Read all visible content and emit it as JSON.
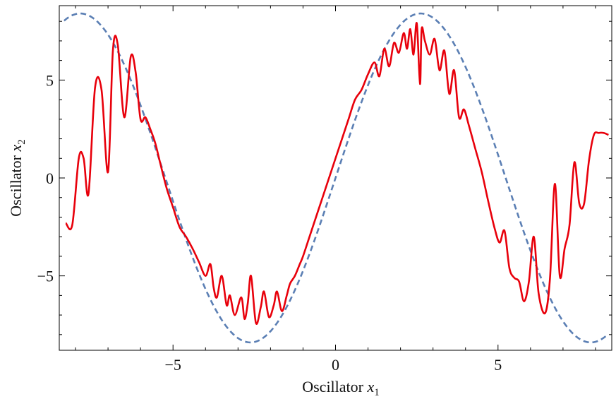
{
  "chart_data": {
    "type": "line",
    "title": "",
    "xlabel_main": "Oscillator ",
    "xlabel_var": "x",
    "xlabel_sub": "1",
    "ylabel_main": "Oscillator ",
    "ylabel_var": "x",
    "ylabel_sub": "2",
    "xlim": [
      -8.5,
      8.5
    ],
    "ylim": [
      -8.8,
      8.8
    ],
    "grid": false,
    "x_ticks_major": [
      -5,
      0,
      5
    ],
    "y_ticks_major": [
      -5,
      0,
      5
    ],
    "x_tick_labels": [
      "−5",
      "0",
      "5"
    ],
    "y_tick_labels": [
      "−5",
      "0",
      "5"
    ],
    "series": [
      {
        "style": "solid",
        "color": "#e8000b",
        "x": [
          -8.3,
          -8.1,
          -7.9,
          -7.75,
          -7.6,
          -7.4,
          -7.2,
          -7.0,
          -6.85,
          -6.7,
          -6.5,
          -6.3,
          -6.15,
          -6.0,
          -5.85,
          -5.7,
          -5.55,
          -5.4,
          -5.2,
          -5.0,
          -4.8,
          -4.6,
          -4.4,
          -4.2,
          -4.0,
          -3.85,
          -3.75,
          -3.65,
          -3.5,
          -3.35,
          -3.25,
          -3.1,
          -2.9,
          -2.8,
          -2.7,
          -2.6,
          -2.45,
          -2.3,
          -2.2,
          -2.05,
          -1.9,
          -1.8,
          -1.65,
          -1.5,
          -1.4,
          -1.25,
          -1.1,
          -1.0,
          -0.8,
          -0.6,
          -0.4,
          -0.2,
          0.0,
          0.2,
          0.4,
          0.6,
          0.8,
          1.0,
          1.2,
          1.35,
          1.5,
          1.65,
          1.8,
          1.95,
          2.1,
          2.2,
          2.3,
          2.4,
          2.5,
          2.6,
          2.65,
          2.75,
          2.9,
          3.05,
          3.2,
          3.35,
          3.5,
          3.65,
          3.8,
          3.95,
          4.1,
          4.3,
          4.5,
          4.7,
          4.9,
          5.05,
          5.2,
          5.35,
          5.5,
          5.65,
          5.8,
          5.95,
          6.1,
          6.25,
          6.45,
          6.6,
          6.75,
          6.9,
          7.05,
          7.2,
          7.35,
          7.5,
          7.65,
          7.8,
          7.95,
          8.1,
          8.25,
          8.4
        ],
        "values": [
          -2.3,
          -2.4,
          1.0,
          1.0,
          -0.8,
          4.6,
          4.5,
          0.3,
          6.5,
          6.8,
          3.1,
          6.2,
          5.4,
          3.0,
          3.1,
          2.5,
          1.8,
          0.8,
          -0.5,
          -1.5,
          -2.5,
          -3.0,
          -3.6,
          -4.3,
          -5.0,
          -4.4,
          -5.6,
          -6.1,
          -5.0,
          -6.5,
          -6.0,
          -7.0,
          -6.1,
          -7.2,
          -6.4,
          -5.0,
          -7.4,
          -6.6,
          -5.8,
          -7.1,
          -6.5,
          -5.8,
          -6.8,
          -6.0,
          -5.4,
          -5.0,
          -4.4,
          -4.0,
          -3.0,
          -2.0,
          -1.0,
          0.0,
          1.0,
          2.0,
          3.0,
          4.0,
          4.5,
          5.3,
          5.9,
          5.2,
          6.6,
          5.7,
          6.9,
          6.4,
          7.4,
          6.6,
          7.6,
          6.3,
          7.9,
          4.8,
          7.6,
          7.0,
          6.3,
          7.1,
          5.5,
          6.5,
          4.3,
          5.5,
          3.1,
          3.5,
          2.7,
          1.5,
          0.3,
          -1.2,
          -2.6,
          -3.3,
          -2.7,
          -4.6,
          -5.1,
          -5.3,
          -6.3,
          -5.3,
          -3.0,
          -5.9,
          -6.9,
          -5.1,
          -0.3,
          -5.0,
          -3.6,
          -2.4,
          0.8,
          -1.3,
          -1.3,
          0.9,
          2.2,
          2.3,
          2.3,
          2.2
        ]
      },
      {
        "style": "dashed",
        "color": "#5b7fb4",
        "function": "8.4*sin(0.6*x)"
      }
    ],
    "legend": "none"
  }
}
